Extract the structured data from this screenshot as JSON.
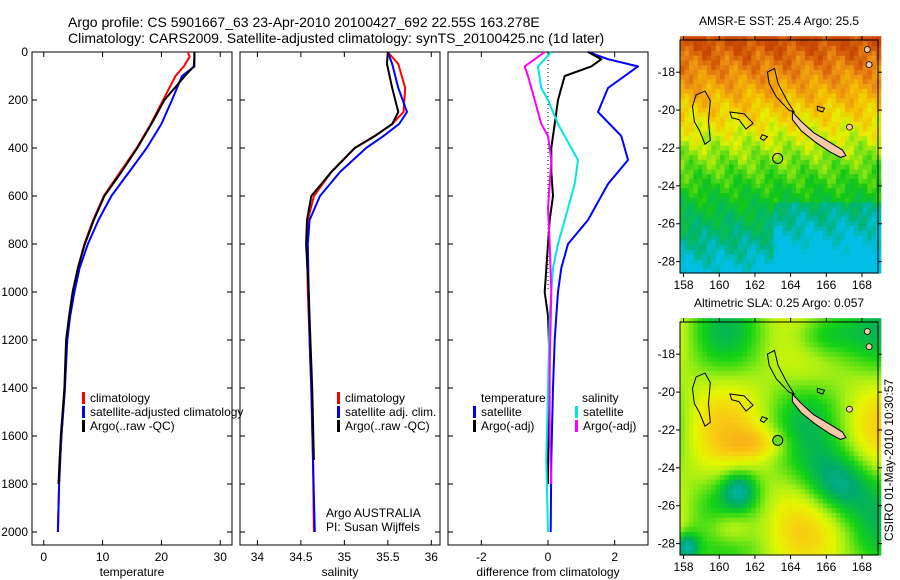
{
  "header": {
    "title_line1": "Argo profile: CS 5901667_63 23-Apr-2010 20100427_692 22.55S 163.278E",
    "title_line2": "Climatology: CARS2009. Satellite-adjusted climatology: synTS_20100425.nc (1d later)"
  },
  "colors": {
    "climatology": "#ff0000",
    "satellite_adjusted": "#0000ff",
    "argo": "#000000",
    "salinity_satellite": "#00e5e5",
    "salinity_argo": "#ff00ff"
  },
  "chart_data": [
    {
      "type": "line",
      "id": "temperature",
      "xlabel": "temperature",
      "ylabel": "",
      "xlim": [
        -2,
        32
      ],
      "ylim": [
        2070,
        0
      ],
      "xticks": [
        0,
        10,
        20,
        30
      ],
      "yticks": [
        0,
        200,
        400,
        600,
        800,
        1000,
        1200,
        1400,
        1600,
        1800,
        2000
      ],
      "legend": [
        "climatology",
        "satellite-adjusted climatology",
        "Argo(..raw -QC)"
      ],
      "legend_position": "center",
      "series": [
        {
          "name": "climatology",
          "color": "#ff0000",
          "x": [
            24.5,
            24.8,
            23.8,
            22.4,
            20.3,
            18.2,
            15.8,
            13.0,
            10.2,
            8.4,
            6.9,
            5.8,
            5.0,
            4.4,
            3.9,
            3.6,
            3.3,
            3.0,
            2.8,
            2.6,
            2.4
          ],
          "y": [
            0,
            20,
            60,
            100,
            200,
            300,
            400,
            500,
            600,
            700,
            800,
            900,
            1000,
            1100,
            1200,
            1400,
            1500,
            1600,
            1700,
            1800,
            2000
          ]
        },
        {
          "name": "satellite-adjusted climatology",
          "color": "#0000ff",
          "x": [
            25.6,
            25.6,
            25.6,
            23.5,
            21.8,
            20.0,
            17.5,
            14.5,
            11.5,
            9.3,
            7.5,
            6.1,
            5.2,
            4.5,
            4.0,
            3.6,
            3.3,
            3.0,
            2.8,
            2.6,
            2.4
          ],
          "y": [
            0,
            20,
            60,
            100,
            200,
            300,
            400,
            500,
            600,
            700,
            800,
            900,
            1000,
            1100,
            1200,
            1400,
            1500,
            1600,
            1700,
            1800,
            2000
          ]
        },
        {
          "name": "Argo(..raw -QC)",
          "color": "#000000",
          "x": [
            25.6,
            25.6,
            25.5,
            24.0,
            20.5,
            18.3,
            15.9,
            13.2,
            10.3,
            8.5,
            7.0,
            5.8,
            4.9,
            4.3,
            3.8,
            3.5,
            3.2,
            2.9,
            2.7,
            2.5
          ],
          "y": [
            0,
            20,
            60,
            100,
            200,
            300,
            400,
            500,
            600,
            700,
            800,
            900,
            1000,
            1100,
            1200,
            1400,
            1500,
            1600,
            1700,
            1800
          ]
        }
      ]
    },
    {
      "type": "line",
      "id": "salinity",
      "xlabel": "salinity",
      "xlim": [
        33.8,
        36.1
      ],
      "ylim": [
        2070,
        0
      ],
      "xticks": [
        34,
        34.5,
        35,
        35.5,
        36
      ],
      "legend": [
        "climatology",
        "satellite adj. clim.",
        "Argo(..raw -QC)"
      ],
      "legend_position": "lower-center",
      "annotation": [
        "Argo AUSTRALIA",
        "PI: Susan Wijffels"
      ],
      "series": [
        {
          "name": "climatology",
          "color": "#ff0000",
          "x": [
            35.5,
            35.62,
            35.7,
            35.68,
            35.55,
            35.35,
            35.12,
            34.85,
            34.65,
            34.58,
            34.57,
            34.58,
            34.6,
            34.62,
            34.64,
            34.65
          ],
          "y": [
            0,
            50,
            150,
            250,
            300,
            350,
            400,
            500,
            600,
            700,
            800,
            1000,
            1200,
            1400,
            1700,
            2000
          ]
        },
        {
          "name": "satellite adj. clim.",
          "color": "#0000ff",
          "x": [
            35.5,
            35.55,
            35.62,
            35.72,
            35.63,
            35.45,
            35.25,
            34.95,
            34.72,
            34.6,
            34.58,
            34.59,
            34.6,
            34.62,
            34.64,
            34.66
          ],
          "y": [
            0,
            50,
            150,
            250,
            300,
            350,
            400,
            500,
            600,
            700,
            800,
            1000,
            1200,
            1400,
            1700,
            2000
          ]
        },
        {
          "name": "Argo(..raw -QC)",
          "color": "#000000",
          "x": [
            35.5,
            35.49,
            35.55,
            35.62,
            35.55,
            35.35,
            35.12,
            34.85,
            34.62,
            34.57,
            34.56,
            34.59,
            34.61,
            34.63,
            34.65
          ],
          "y": [
            0,
            50,
            150,
            250,
            300,
            350,
            400,
            500,
            600,
            700,
            800,
            1000,
            1200,
            1400,
            1700
          ]
        }
      ]
    },
    {
      "type": "line",
      "id": "difference",
      "xlabel": "difference from climatology",
      "xlim": [
        -3,
        3
      ],
      "ylim": [
        2070,
        0
      ],
      "xticks": [
        -2,
        0,
        2
      ],
      "zero_line": "dotted",
      "legend_groups": [
        {
          "title": "temperature",
          "items": [
            "satellite",
            "Argo(-adj)"
          ]
        },
        {
          "title": "salinity",
          "items": [
            "satellite",
            "Argo(-adj)"
          ]
        }
      ],
      "legend_position": "lower",
      "series": [
        {
          "name": "temperature satellite",
          "color": "#0000ff",
          "x": [
            1.2,
            1.8,
            2.7,
            1.8,
            1.5,
            2.2,
            2.4,
            1.8,
            1.2,
            0.6,
            0.4,
            0.3,
            0.25,
            0.2,
            0.15,
            0.1,
            0.08
          ],
          "y": [
            0,
            30,
            60,
            150,
            250,
            350,
            450,
            550,
            700,
            800,
            900,
            1000,
            1100,
            1200,
            1400,
            1700,
            2000
          ]
        },
        {
          "name": "temperature Argo(-adj)",
          "color": "#000000",
          "x": [
            1.2,
            1.6,
            1.3,
            0.5,
            0.3,
            0.2,
            0.1,
            0.1,
            0.15,
            0.05,
            0.0,
            -0.1,
            0.0,
            0.05,
            0.0,
            0.0
          ],
          "y": [
            0,
            30,
            60,
            100,
            200,
            300,
            400,
            500,
            600,
            700,
            800,
            1000,
            1100,
            1300,
            1600,
            1800
          ]
        },
        {
          "name": "salinity satellite",
          "color": "#00e5e5",
          "x": [
            0.1,
            -0.3,
            -0.2,
            0.0,
            0.3,
            0.7,
            0.9,
            0.8,
            0.5,
            0.3,
            0.15,
            0.05,
            0.0,
            -0.05,
            0.0
          ],
          "y": [
            0,
            60,
            150,
            200,
            300,
            400,
            450,
            550,
            700,
            800,
            900,
            1100,
            1400,
            1700,
            2000
          ]
        },
        {
          "name": "salinity Argo(-adj)",
          "color": "#ff00ff",
          "x": [
            -0.1,
            -0.7,
            -0.6,
            -0.4,
            -0.2,
            0.0,
            0.1,
            0.05,
            0.0,
            0.05,
            0.1,
            0.05,
            0.05,
            0.1
          ],
          "y": [
            0,
            60,
            100,
            200,
            300,
            350,
            450,
            550,
            650,
            800,
            1000,
            1300,
            1600,
            1800
          ]
        }
      ]
    },
    {
      "type": "heatmap",
      "id": "sst_map",
      "title": "AMSR-E SST: 25.4 Argo: 25.5",
      "xlim": [
        157.8,
        168.9
      ],
      "ylim": [
        -28.6,
        -16.3
      ],
      "xticks": [
        158,
        160,
        162,
        164,
        166,
        168
      ],
      "yticks": [
        -18,
        -20,
        -22,
        -24,
        -26,
        -28
      ],
      "marker": {
        "lon": 163.278,
        "lat": -22.55,
        "fill": "none"
      },
      "colormap": "sst"
    },
    {
      "type": "heatmap",
      "id": "sla_map",
      "title": "Altimetric SLA: 0.25 Argo: 0.057",
      "xlim": [
        157.8,
        168.9
      ],
      "ylim": [
        -28.6,
        -16.3
      ],
      "xticks": [
        158,
        160,
        162,
        164,
        166,
        168
      ],
      "yticks": [
        -18,
        -20,
        -22,
        -24,
        -26,
        -28
      ],
      "marker": {
        "lon": 163.278,
        "lat": -22.55,
        "fill": "#66dd22"
      },
      "colormap": "sla"
    }
  ],
  "footer": {
    "side_label": "CSIRO 01-May-2010 10:30:57"
  }
}
